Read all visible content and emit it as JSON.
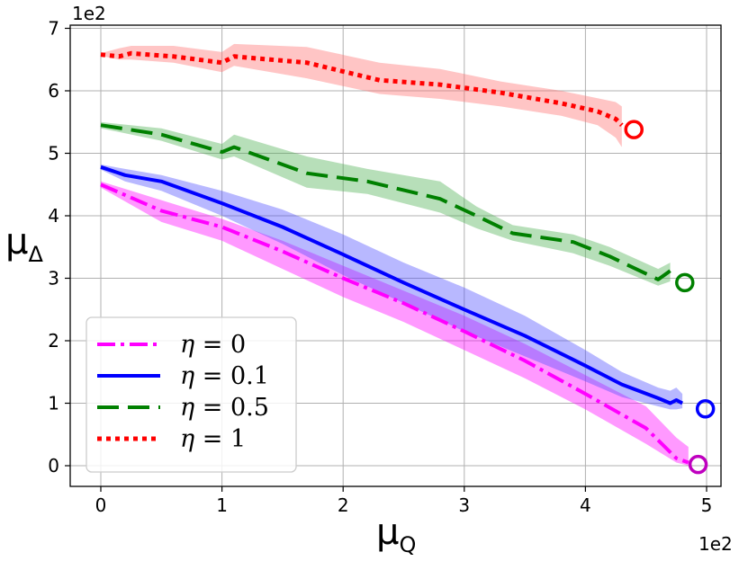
{
  "chart_data": {
    "type": "line",
    "title": "",
    "xlabel_var": "μ",
    "xlabel_sub": "Q",
    "ylabel_var": "μ",
    "ylabel_sub": "Δ",
    "x_scale_label": "1e2",
    "y_scale_label": "1e2",
    "xlim": [
      -0.25,
      5.1
    ],
    "ylim": [
      -0.35,
      7.05
    ],
    "xticks": [
      0,
      1,
      2,
      3,
      4,
      5
    ],
    "yticks": [
      0,
      1,
      2,
      3,
      4,
      5,
      6,
      7
    ],
    "xtick_labels": [
      "0",
      "1",
      "2",
      "3",
      "4",
      "5"
    ],
    "ytick_labels": [
      "0",
      "1",
      "2",
      "3",
      "4",
      "5",
      "6",
      "7"
    ],
    "grid": true,
    "legend_position": "bottom-left",
    "series": [
      {
        "name": "η = 0",
        "eta_label": "η",
        "eq_label": "= 0",
        "color": "#ff00ff",
        "fill": "#ff00ff",
        "dash": "20,6,4,6",
        "width": 4,
        "x": [
          0,
          0.5,
          1.0,
          1.5,
          2.0,
          2.5,
          3.0,
          3.5,
          4.0,
          4.5,
          4.75,
          4.85
        ],
        "y": [
          4.5,
          4.08,
          3.82,
          3.43,
          3.0,
          2.6,
          2.15,
          1.68,
          1.15,
          0.6,
          0.12,
          0.05
        ],
        "upper": [
          4.55,
          4.25,
          3.95,
          3.6,
          3.2,
          2.8,
          2.4,
          1.95,
          1.45,
          0.95,
          0.45,
          0.3
        ],
        "lower": [
          4.45,
          3.9,
          3.6,
          3.15,
          2.7,
          2.3,
          1.85,
          1.4,
          0.9,
          0.35,
          0.05,
          0.0
        ],
        "final_point": [
          4.93,
          0.02
        ],
        "final_color": "#bf00bf"
      },
      {
        "name": "η = 0.1",
        "eta_label": "η",
        "eq_label": "= 0.1",
        "color": "#0000ff",
        "fill": "#4d4dff",
        "dash": "",
        "width": 4,
        "x": [
          0,
          0.2,
          0.5,
          1.0,
          1.5,
          2.0,
          2.5,
          3.0,
          3.5,
          4.0,
          4.3,
          4.6,
          4.7,
          4.75,
          4.8
        ],
        "y": [
          4.78,
          4.65,
          4.55,
          4.2,
          3.82,
          3.38,
          2.93,
          2.5,
          2.08,
          1.6,
          1.3,
          1.08,
          1.0,
          1.05,
          1.0
        ],
        "upper": [
          4.82,
          4.75,
          4.65,
          4.4,
          4.1,
          3.7,
          3.25,
          2.85,
          2.4,
          1.85,
          1.5,
          1.25,
          1.2,
          1.25,
          1.15
        ],
        "lower": [
          4.74,
          4.55,
          4.4,
          4.0,
          3.55,
          3.05,
          2.6,
          2.15,
          1.75,
          1.35,
          1.1,
          0.95,
          0.9,
          0.9,
          0.92
        ],
        "final_point": [
          4.99,
          0.91
        ],
        "final_color": "#0000ff"
      },
      {
        "name": "η = 0.5",
        "eta_label": "η",
        "eq_label": "= 0.5",
        "color": "#008000",
        "fill": "#4caf50",
        "dash": "24,10",
        "width": 4,
        "x": [
          0,
          0.5,
          1.0,
          1.1,
          1.7,
          2.2,
          2.8,
          3.1,
          3.4,
          3.9,
          4.2,
          4.6,
          4.7
        ],
        "y": [
          5.45,
          5.3,
          5.02,
          5.1,
          4.68,
          4.55,
          4.27,
          4.0,
          3.72,
          3.58,
          3.35,
          2.98,
          3.12
        ],
        "upper": [
          5.5,
          5.4,
          5.15,
          5.3,
          4.95,
          4.75,
          4.55,
          4.15,
          3.85,
          3.7,
          3.5,
          3.15,
          3.25
        ],
        "lower": [
          5.4,
          5.2,
          4.9,
          4.95,
          4.45,
          4.35,
          4.05,
          3.8,
          3.6,
          3.4,
          3.2,
          2.88,
          2.95
        ],
        "final_point": [
          4.82,
          2.93
        ],
        "final_color": "#008000"
      },
      {
        "name": "η = 1",
        "eta_label": "η",
        "eq_label": "= 1",
        "color": "#ff0000",
        "fill": "#ff6f6f",
        "dash": "5,5",
        "width": 5,
        "x": [
          0,
          0.15,
          0.25,
          0.6,
          1.0,
          1.1,
          1.7,
          2.3,
          2.8,
          3.3,
          3.8,
          4.1,
          4.25,
          4.3
        ],
        "y": [
          6.58,
          6.55,
          6.6,
          6.55,
          6.45,
          6.55,
          6.45,
          6.17,
          6.1,
          5.97,
          5.8,
          5.67,
          5.55,
          5.45
        ],
        "upper": [
          6.6,
          6.68,
          6.72,
          6.72,
          6.62,
          6.75,
          6.7,
          6.45,
          6.35,
          6.15,
          6.0,
          5.88,
          5.82,
          5.75
        ],
        "lower": [
          6.56,
          6.5,
          6.5,
          6.45,
          6.3,
          6.4,
          6.2,
          5.95,
          5.87,
          5.75,
          5.6,
          5.45,
          5.25,
          5.1
        ],
        "final_point": [
          4.4,
          5.38
        ],
        "final_color": "#ff0000"
      }
    ]
  }
}
